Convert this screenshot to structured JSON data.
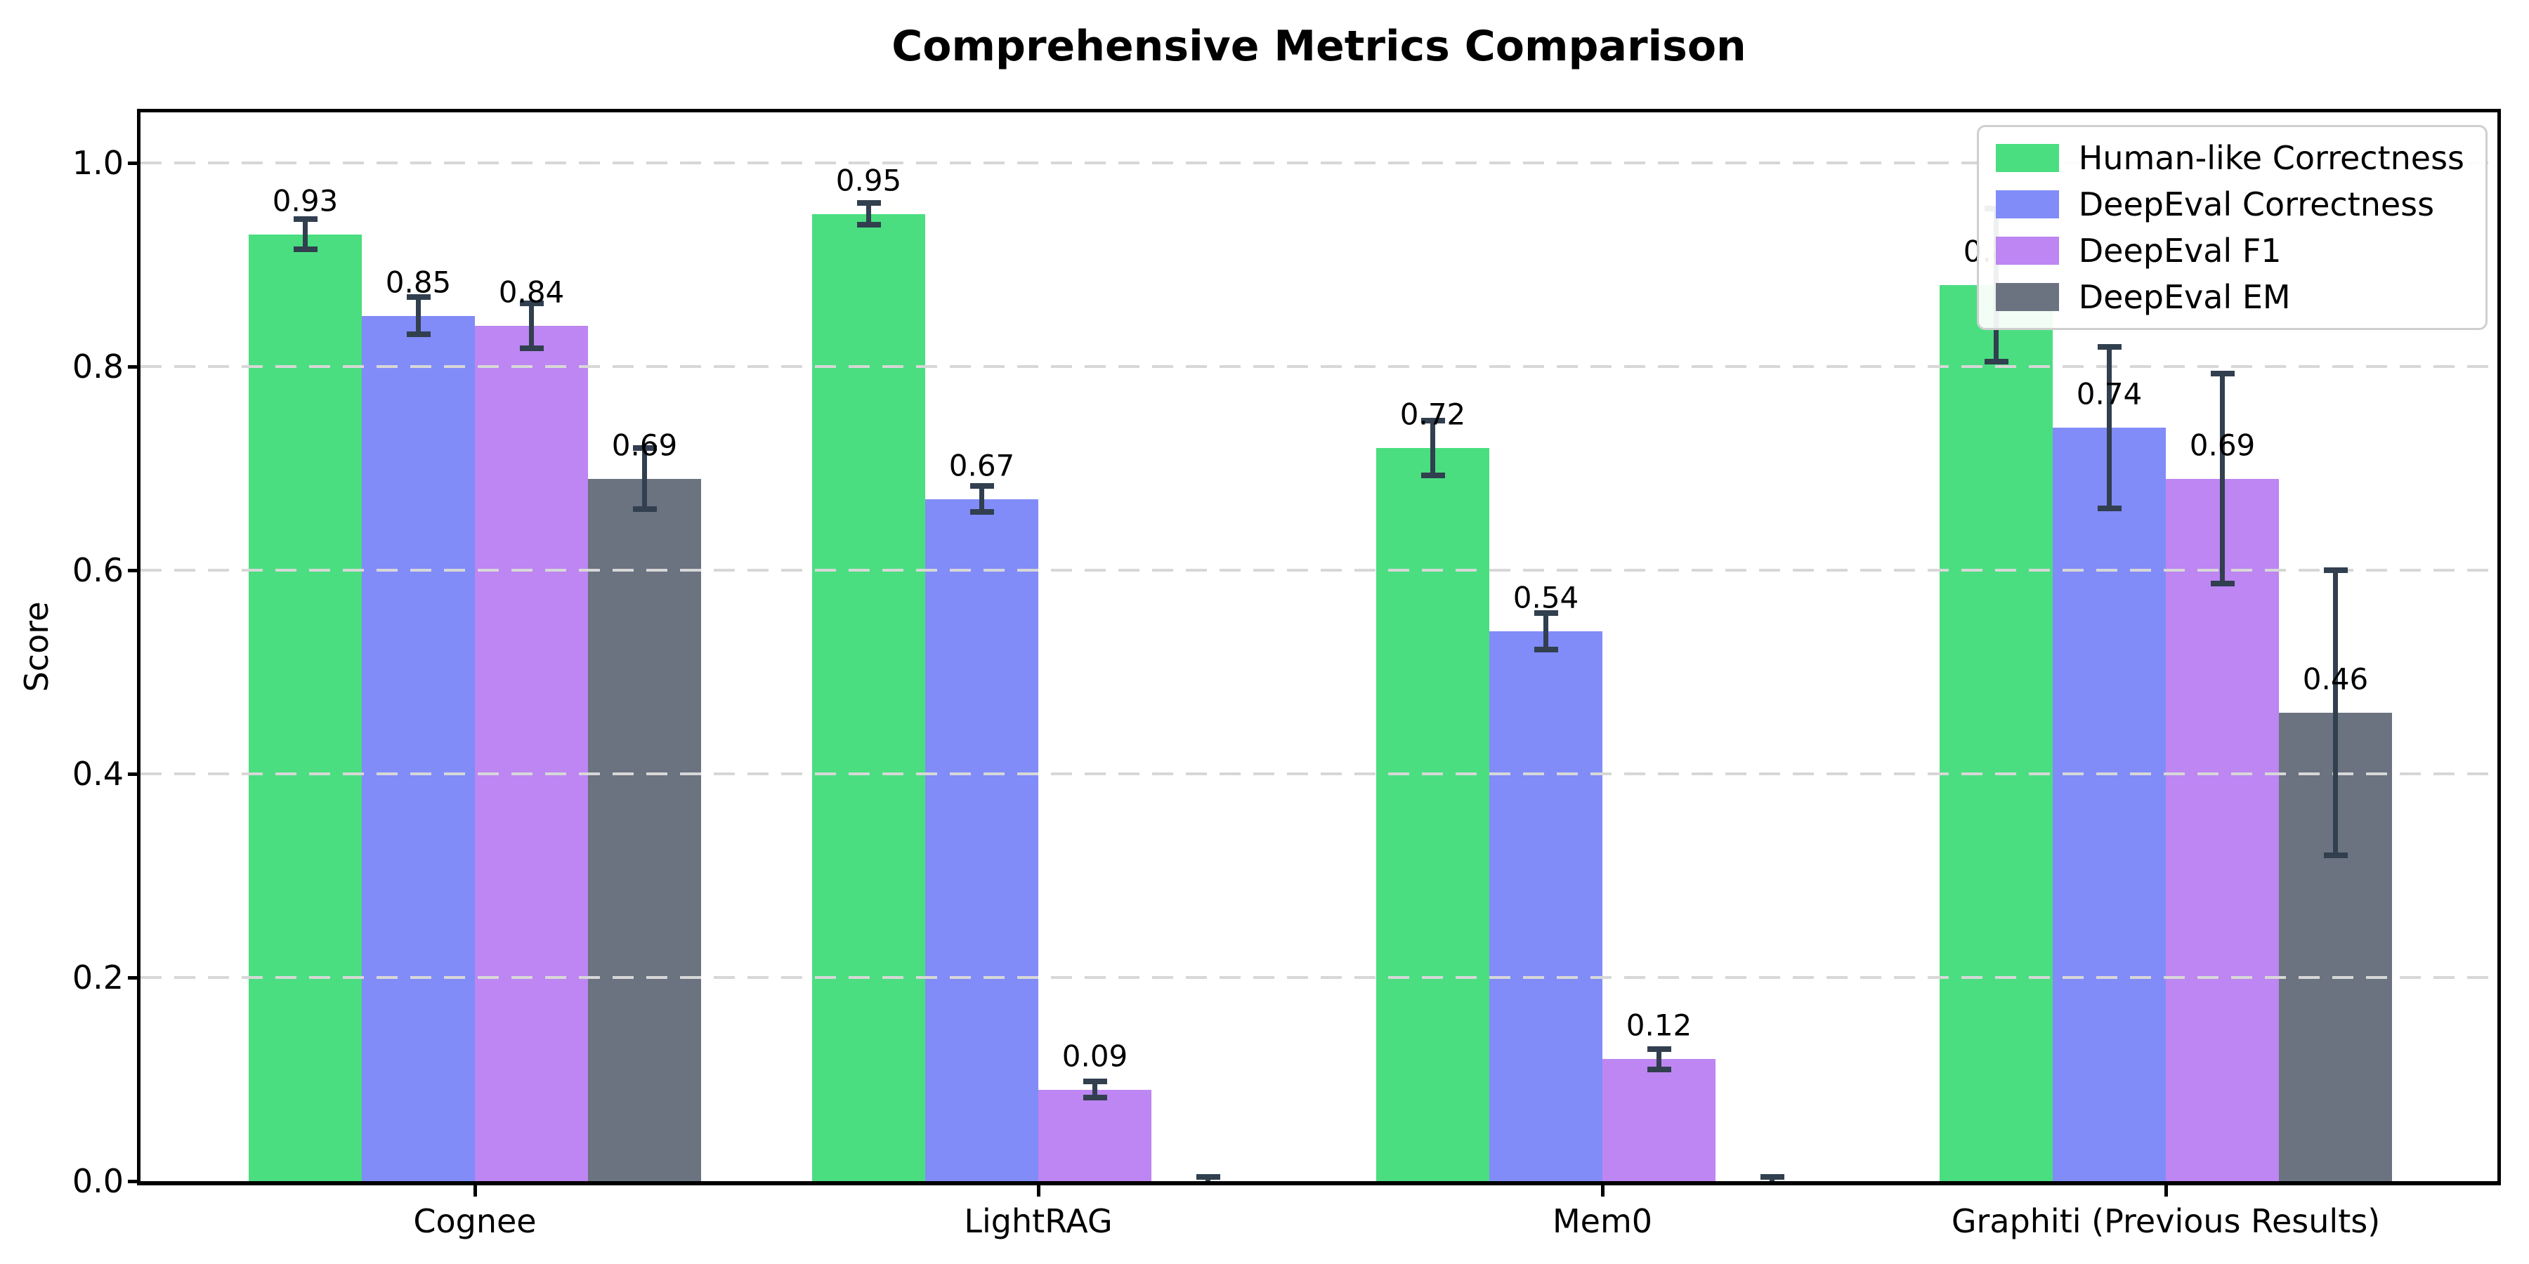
{
  "figure": {
    "title": "Comprehensive Metrics Comparison"
  },
  "chart_data": {
    "type": "bar",
    "title": "Comprehensive Metrics Comparison",
    "xlabel": "",
    "ylabel": "Score",
    "ylim": [
      0,
      1.05
    ],
    "categories": [
      "Cognee",
      "LightRAG",
      "Mem0",
      "Graphiti (Previous Results)"
    ],
    "yticks": [
      "0.0",
      "0.2",
      "0.4",
      "0.6",
      "0.8",
      "1.0"
    ],
    "grid": {
      "axis": "y",
      "style": "dashed",
      "color": "#d7d7d7",
      "drawn_above_bars": true
    },
    "legend": {
      "position": "upper right"
    },
    "error_bar_color": "#313f4f",
    "spine_color": "#000000",
    "series": [
      {
        "name": "Human-like Correctness",
        "color": "#4ade80",
        "values": [
          0.93,
          0.95,
          0.72,
          0.88
        ],
        "errors": [
          0.015,
          0.011,
          0.027,
          0.075
        ],
        "labels": [
          "0.93",
          "0.95",
          "0.72",
          "0.88"
        ]
      },
      {
        "name": "DeepEval Correctness",
        "color": "#818cf8",
        "values": [
          0.85,
          0.67,
          0.54,
          0.74
        ],
        "errors": [
          0.018,
          0.013,
          0.018,
          0.079
        ],
        "labels": [
          "0.85",
          "0.67",
          "0.54",
          "0.74"
        ]
      },
      {
        "name": "DeepEval F1",
        "color": "#bd86f2",
        "values": [
          0.84,
          0.09,
          0.12,
          0.69
        ],
        "errors": [
          0.022,
          0.008,
          0.01,
          0.103
        ],
        "labels": [
          "0.84",
          "0.09",
          "0.12",
          "0.69"
        ]
      },
      {
        "name": "DeepEval EM",
        "color": "#6b7280",
        "values": [
          0.69,
          0.0,
          0.0,
          0.46
        ],
        "errors": [
          0.03,
          0.004,
          0.004,
          0.14
        ],
        "labels": [
          "0.69",
          null,
          null,
          "0.46"
        ]
      }
    ]
  }
}
